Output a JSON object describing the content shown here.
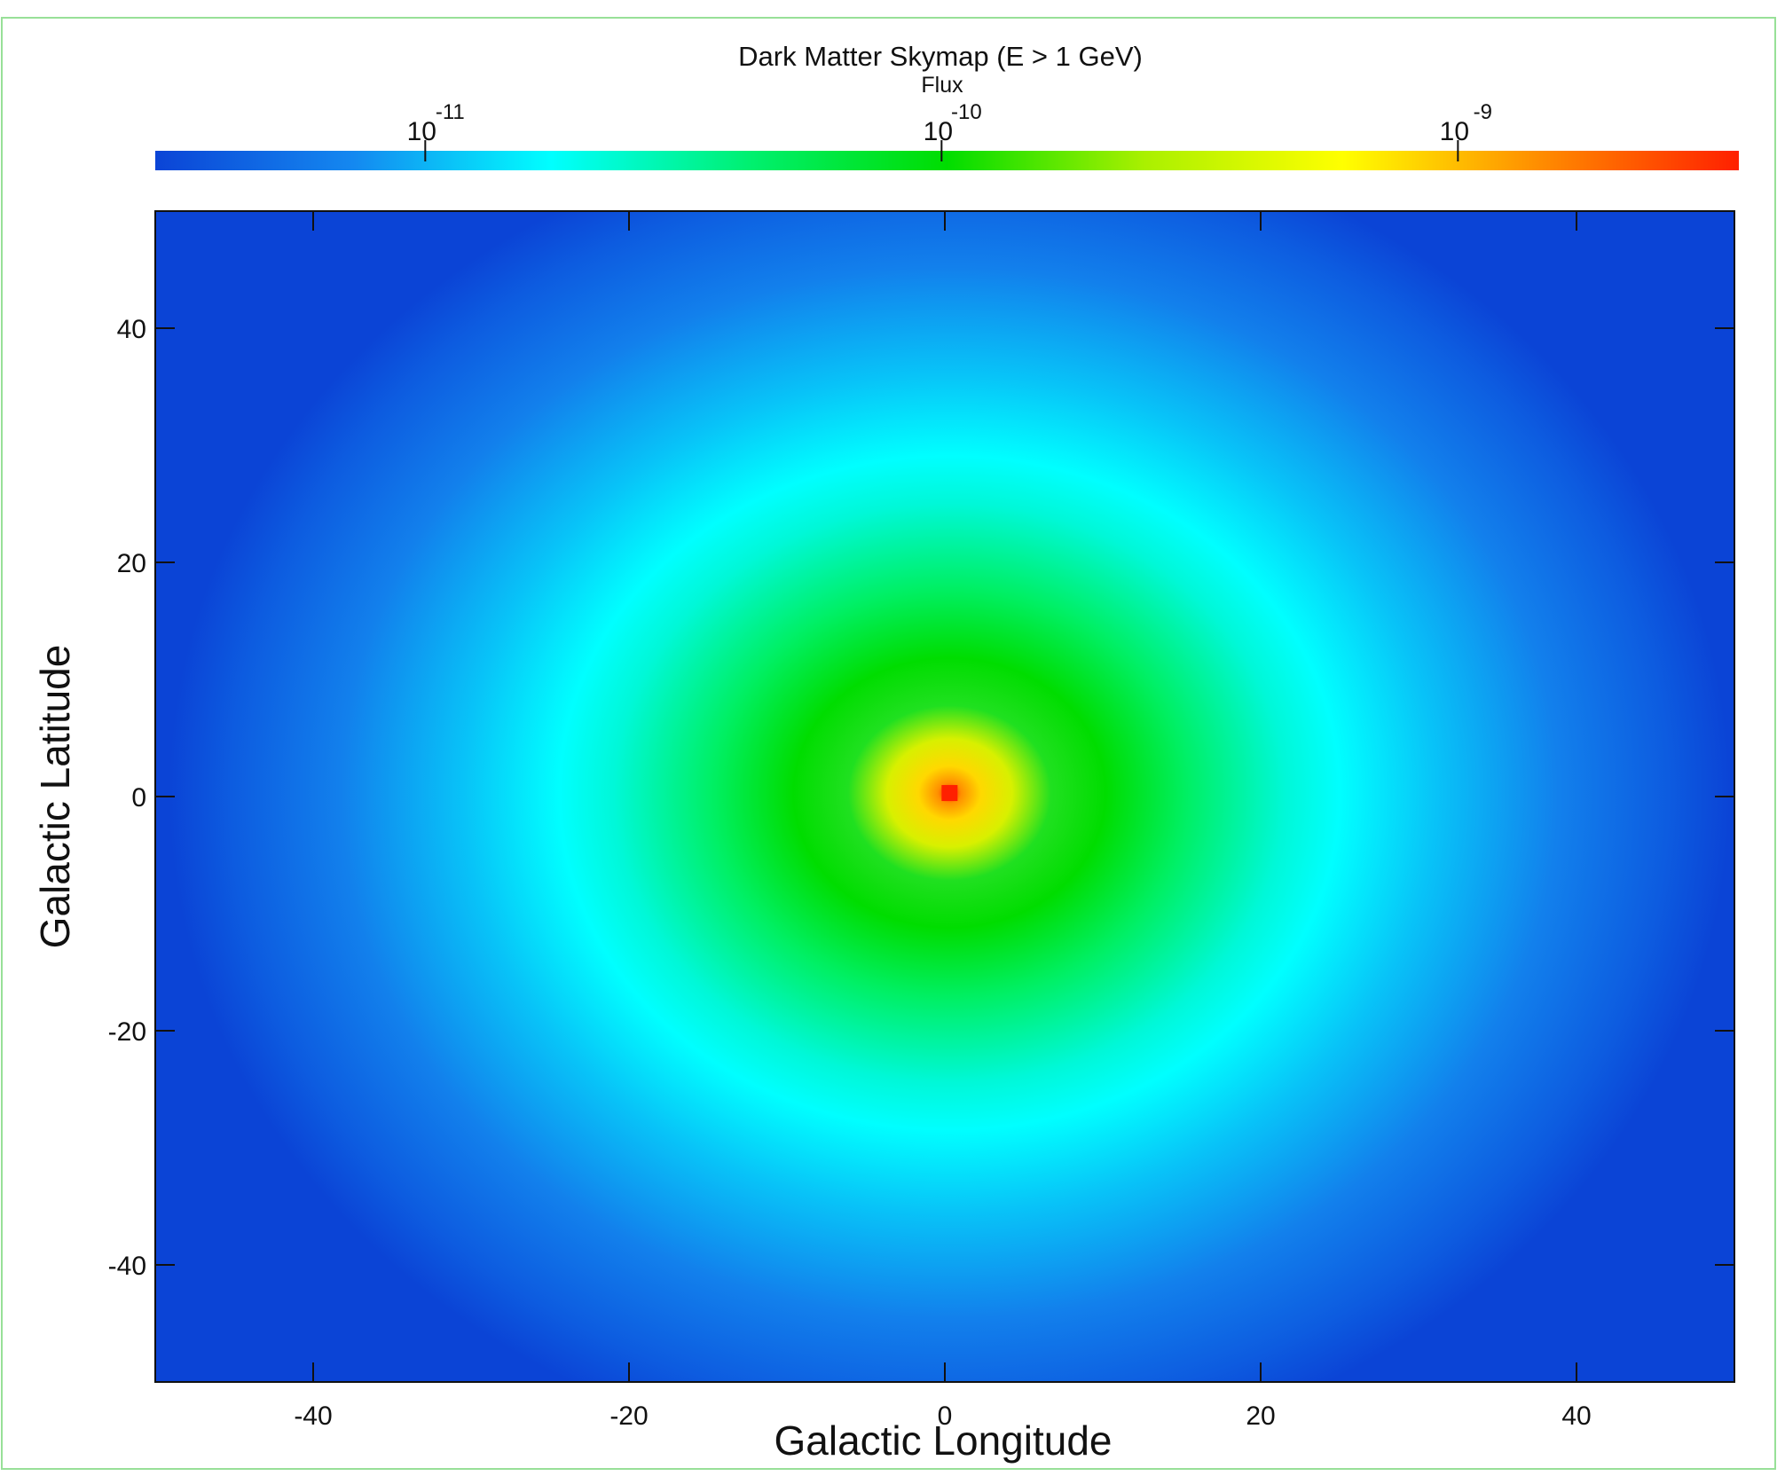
{
  "chart_data": {
    "type": "heatmap",
    "title": "Dark Matter Skymap (E > 1 GeV)",
    "colorbar": {
      "label": "Flux",
      "scale": "log",
      "range": [
        3e-12,
        3.5e-09
      ],
      "ticks": [
        {
          "value": 1e-11,
          "base": "10",
          "exp": "-11"
        },
        {
          "value": 1e-10,
          "base": "10",
          "exp": "-10"
        },
        {
          "value": 1e-09,
          "base": "10",
          "exp": "-9"
        }
      ],
      "placement": "top",
      "colormap": [
        "#0b44d6",
        "#1488f0",
        "#00ffff",
        "#00f070",
        "#00dd00",
        "#aaf000",
        "#ffff00",
        "#ff8c00",
        "#ff2000"
      ]
    },
    "xlabel": "Galactic Longitude",
    "ylabel": "Galactic Latitude",
    "xlim": [
      -50,
      50
    ],
    "ylim": [
      -50,
      50
    ],
    "xticks": [
      -40,
      -20,
      0,
      20,
      40
    ],
    "yticks": [
      40,
      20,
      0,
      -20,
      -40
    ],
    "peak": {
      "l": 0.3,
      "b": 0.3,
      "flux": 3.5e-09
    },
    "grid": false,
    "border_color": "#98e098"
  }
}
